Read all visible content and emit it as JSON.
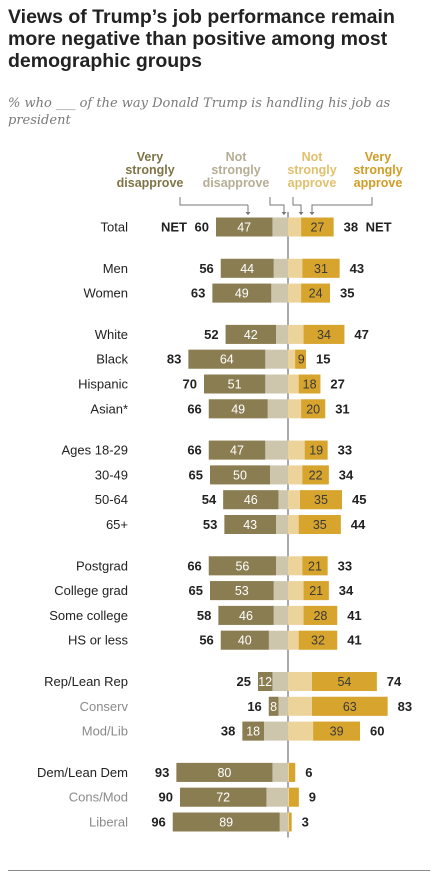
{
  "title": "Views of Trump’s job performance remain more negative than positive among most demographic groups",
  "subtitle": "% who ___ of the way Donald Trump is handling his job as president",
  "colors": {
    "very_disapprove": "#8b7d52",
    "not_strongly_disapprove": "#cdc6ad",
    "not_strongly_approve": "#ecd39a",
    "very_approve": "#d7a42d",
    "disapprove_header": "#7f7446",
    "not_disapprove_header": "#b6ae94",
    "not_approve_header": "#e2bf6c",
    "approve_header": "#cf9d25",
    "row_label": "#222222",
    "row_label_sub": "#8a8a8a"
  },
  "chart_data": {
    "type": "bar",
    "orientation": "horizontal-diverging",
    "series": [
      {
        "name": "Very strongly disapprove",
        "side": "disapprove",
        "tone": "strong"
      },
      {
        "name": "Not strongly disapprove",
        "side": "disapprove",
        "tone": "weak"
      },
      {
        "name": "Not strongly approve",
        "side": "approve",
        "tone": "weak"
      },
      {
        "name": "Very strongly approve",
        "side": "approve",
        "tone": "strong"
      }
    ],
    "headers": {
      "very_disapprove": [
        "Very",
        "strongly",
        "disapprove"
      ],
      "not_disapprove": [
        "Not",
        "strongly",
        "disapprove"
      ],
      "not_approve": [
        "Not",
        "strongly",
        "approve"
      ],
      "very_approve": [
        "Very",
        "strongly",
        "approve"
      ]
    },
    "net_label": "NET",
    "groups": [
      [
        {
          "label": "Total",
          "very_disapprove": 47,
          "net_disapprove": 60,
          "very_approve": 27,
          "net_approve": 38,
          "is_total": true,
          "sub": false
        }
      ],
      [
        {
          "label": "Men",
          "very_disapprove": 44,
          "net_disapprove": 56,
          "very_approve": 31,
          "net_approve": 43,
          "sub": false
        },
        {
          "label": "Women",
          "very_disapprove": 49,
          "net_disapprove": 63,
          "very_approve": 24,
          "net_approve": 35,
          "sub": false
        }
      ],
      [
        {
          "label": "White",
          "very_disapprove": 42,
          "net_disapprove": 52,
          "very_approve": 34,
          "net_approve": 47,
          "sub": false
        },
        {
          "label": "Black",
          "very_disapprove": 64,
          "net_disapprove": 83,
          "very_approve": 9,
          "net_approve": 15,
          "sub": false
        },
        {
          "label": "Hispanic",
          "very_disapprove": 51,
          "net_disapprove": 70,
          "very_approve": 18,
          "net_approve": 27,
          "sub": false
        },
        {
          "label": "Asian*",
          "very_disapprove": 49,
          "net_disapprove": 66,
          "very_approve": 20,
          "net_approve": 31,
          "sub": false
        }
      ],
      [
        {
          "label": "Ages 18-29",
          "very_disapprove": 47,
          "net_disapprove": 66,
          "very_approve": 19,
          "net_approve": 33,
          "sub": false
        },
        {
          "label": "30-49",
          "very_disapprove": 50,
          "net_disapprove": 65,
          "very_approve": 22,
          "net_approve": 34,
          "sub": false
        },
        {
          "label": "50-64",
          "very_disapprove": 46,
          "net_disapprove": 54,
          "very_approve": 35,
          "net_approve": 45,
          "sub": false
        },
        {
          "label": "65+",
          "very_disapprove": 43,
          "net_disapprove": 53,
          "very_approve": 35,
          "net_approve": 44,
          "sub": false
        }
      ],
      [
        {
          "label": "Postgrad",
          "very_disapprove": 56,
          "net_disapprove": 66,
          "very_approve": 21,
          "net_approve": 33,
          "sub": false
        },
        {
          "label": "College grad",
          "very_disapprove": 53,
          "net_disapprove": 65,
          "very_approve": 21,
          "net_approve": 34,
          "sub": false
        },
        {
          "label": "Some college",
          "very_disapprove": 46,
          "net_disapprove": 58,
          "very_approve": 28,
          "net_approve": 41,
          "sub": false
        },
        {
          "label": "HS or less",
          "very_disapprove": 40,
          "net_disapprove": 56,
          "very_approve": 32,
          "net_approve": 41,
          "sub": false
        }
      ],
      [
        {
          "label": "Rep/Lean Rep",
          "very_disapprove": 12,
          "net_disapprove": 25,
          "very_approve": 54,
          "net_approve": 74,
          "sub": false
        },
        {
          "label": "Conserv",
          "very_disapprove": 8,
          "net_disapprove": 16,
          "very_approve": 63,
          "net_approve": 83,
          "sub": true
        },
        {
          "label": "Mod/Lib",
          "very_disapprove": 18,
          "net_disapprove": 38,
          "very_approve": 39,
          "net_approve": 60,
          "sub": true
        }
      ],
      [
        {
          "label": "Dem/Lean Dem",
          "very_disapprove": 80,
          "net_disapprove": 93,
          "very_approve": null,
          "net_approve": 6,
          "sub": false
        },
        {
          "label": "Cons/Mod",
          "very_disapprove": 72,
          "net_disapprove": 90,
          "very_approve": null,
          "net_approve": 9,
          "sub": true
        },
        {
          "label": "Liberal",
          "very_disapprove": 89,
          "net_disapprove": 96,
          "very_approve": null,
          "net_approve": 3,
          "sub": true
        }
      ]
    ]
  }
}
